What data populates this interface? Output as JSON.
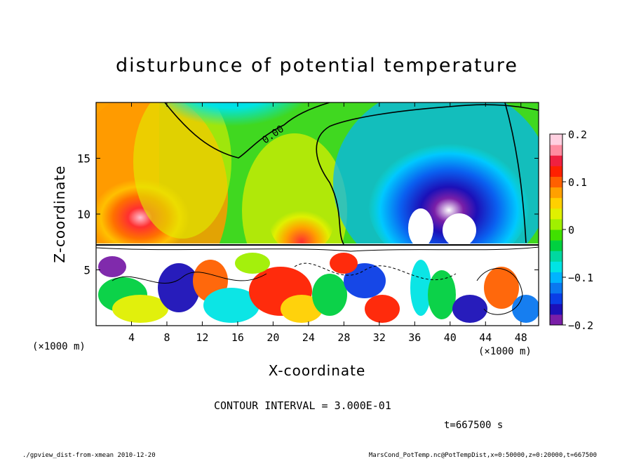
{
  "chart_data": {
    "type": "heatmap",
    "title": "disturbunce of potential temperature",
    "xlabel": "X-coordinate",
    "ylabel": "Z-coordinate",
    "x_unit_left": "(×1000 m)",
    "x_unit_right": "(×1000 m)",
    "xlim": [
      0,
      50
    ],
    "ylim": [
      0,
      20
    ],
    "x_ticks": [
      4,
      8,
      12,
      16,
      20,
      24,
      28,
      32,
      36,
      40,
      44,
      48
    ],
    "y_ticks": [
      5,
      10,
      15
    ],
    "colorbar": {
      "min": -0.2,
      "max": 0.2,
      "ticks": [
        {
          "value": 0.2,
          "label": "0.2"
        },
        {
          "value": 0.1,
          "label": "0.1"
        },
        {
          "value": 0,
          "label": "0"
        },
        {
          "value": -0.1,
          "label": "−0.1"
        },
        {
          "value": -0.2,
          "label": "−0.2"
        }
      ],
      "colors": [
        "#7a1fa8",
        "#1c10b8",
        "#0a3ee6",
        "#0a78f0",
        "#00b4ff",
        "#00e4e4",
        "#00d8a0",
        "#00d040",
        "#40e000",
        "#a0f000",
        "#e0f000",
        "#ffd000",
        "#ffa000",
        "#ff6000",
        "#ff2000",
        "#f02040",
        "#ff8ca0",
        "#ffd0e0"
      ]
    },
    "contour_label": "0.00",
    "contour_interval_text": "CONTOUR INTERVAL = 3.000E-01",
    "time_text": "t=667500 s"
  },
  "footer": {
    "left": "./gpview_dist-from-xmean  2010-12-20",
    "right": "MarsCond_PotTemp.nc@PotTempDist,x=0:50000,z=0:20000,t=667500"
  }
}
